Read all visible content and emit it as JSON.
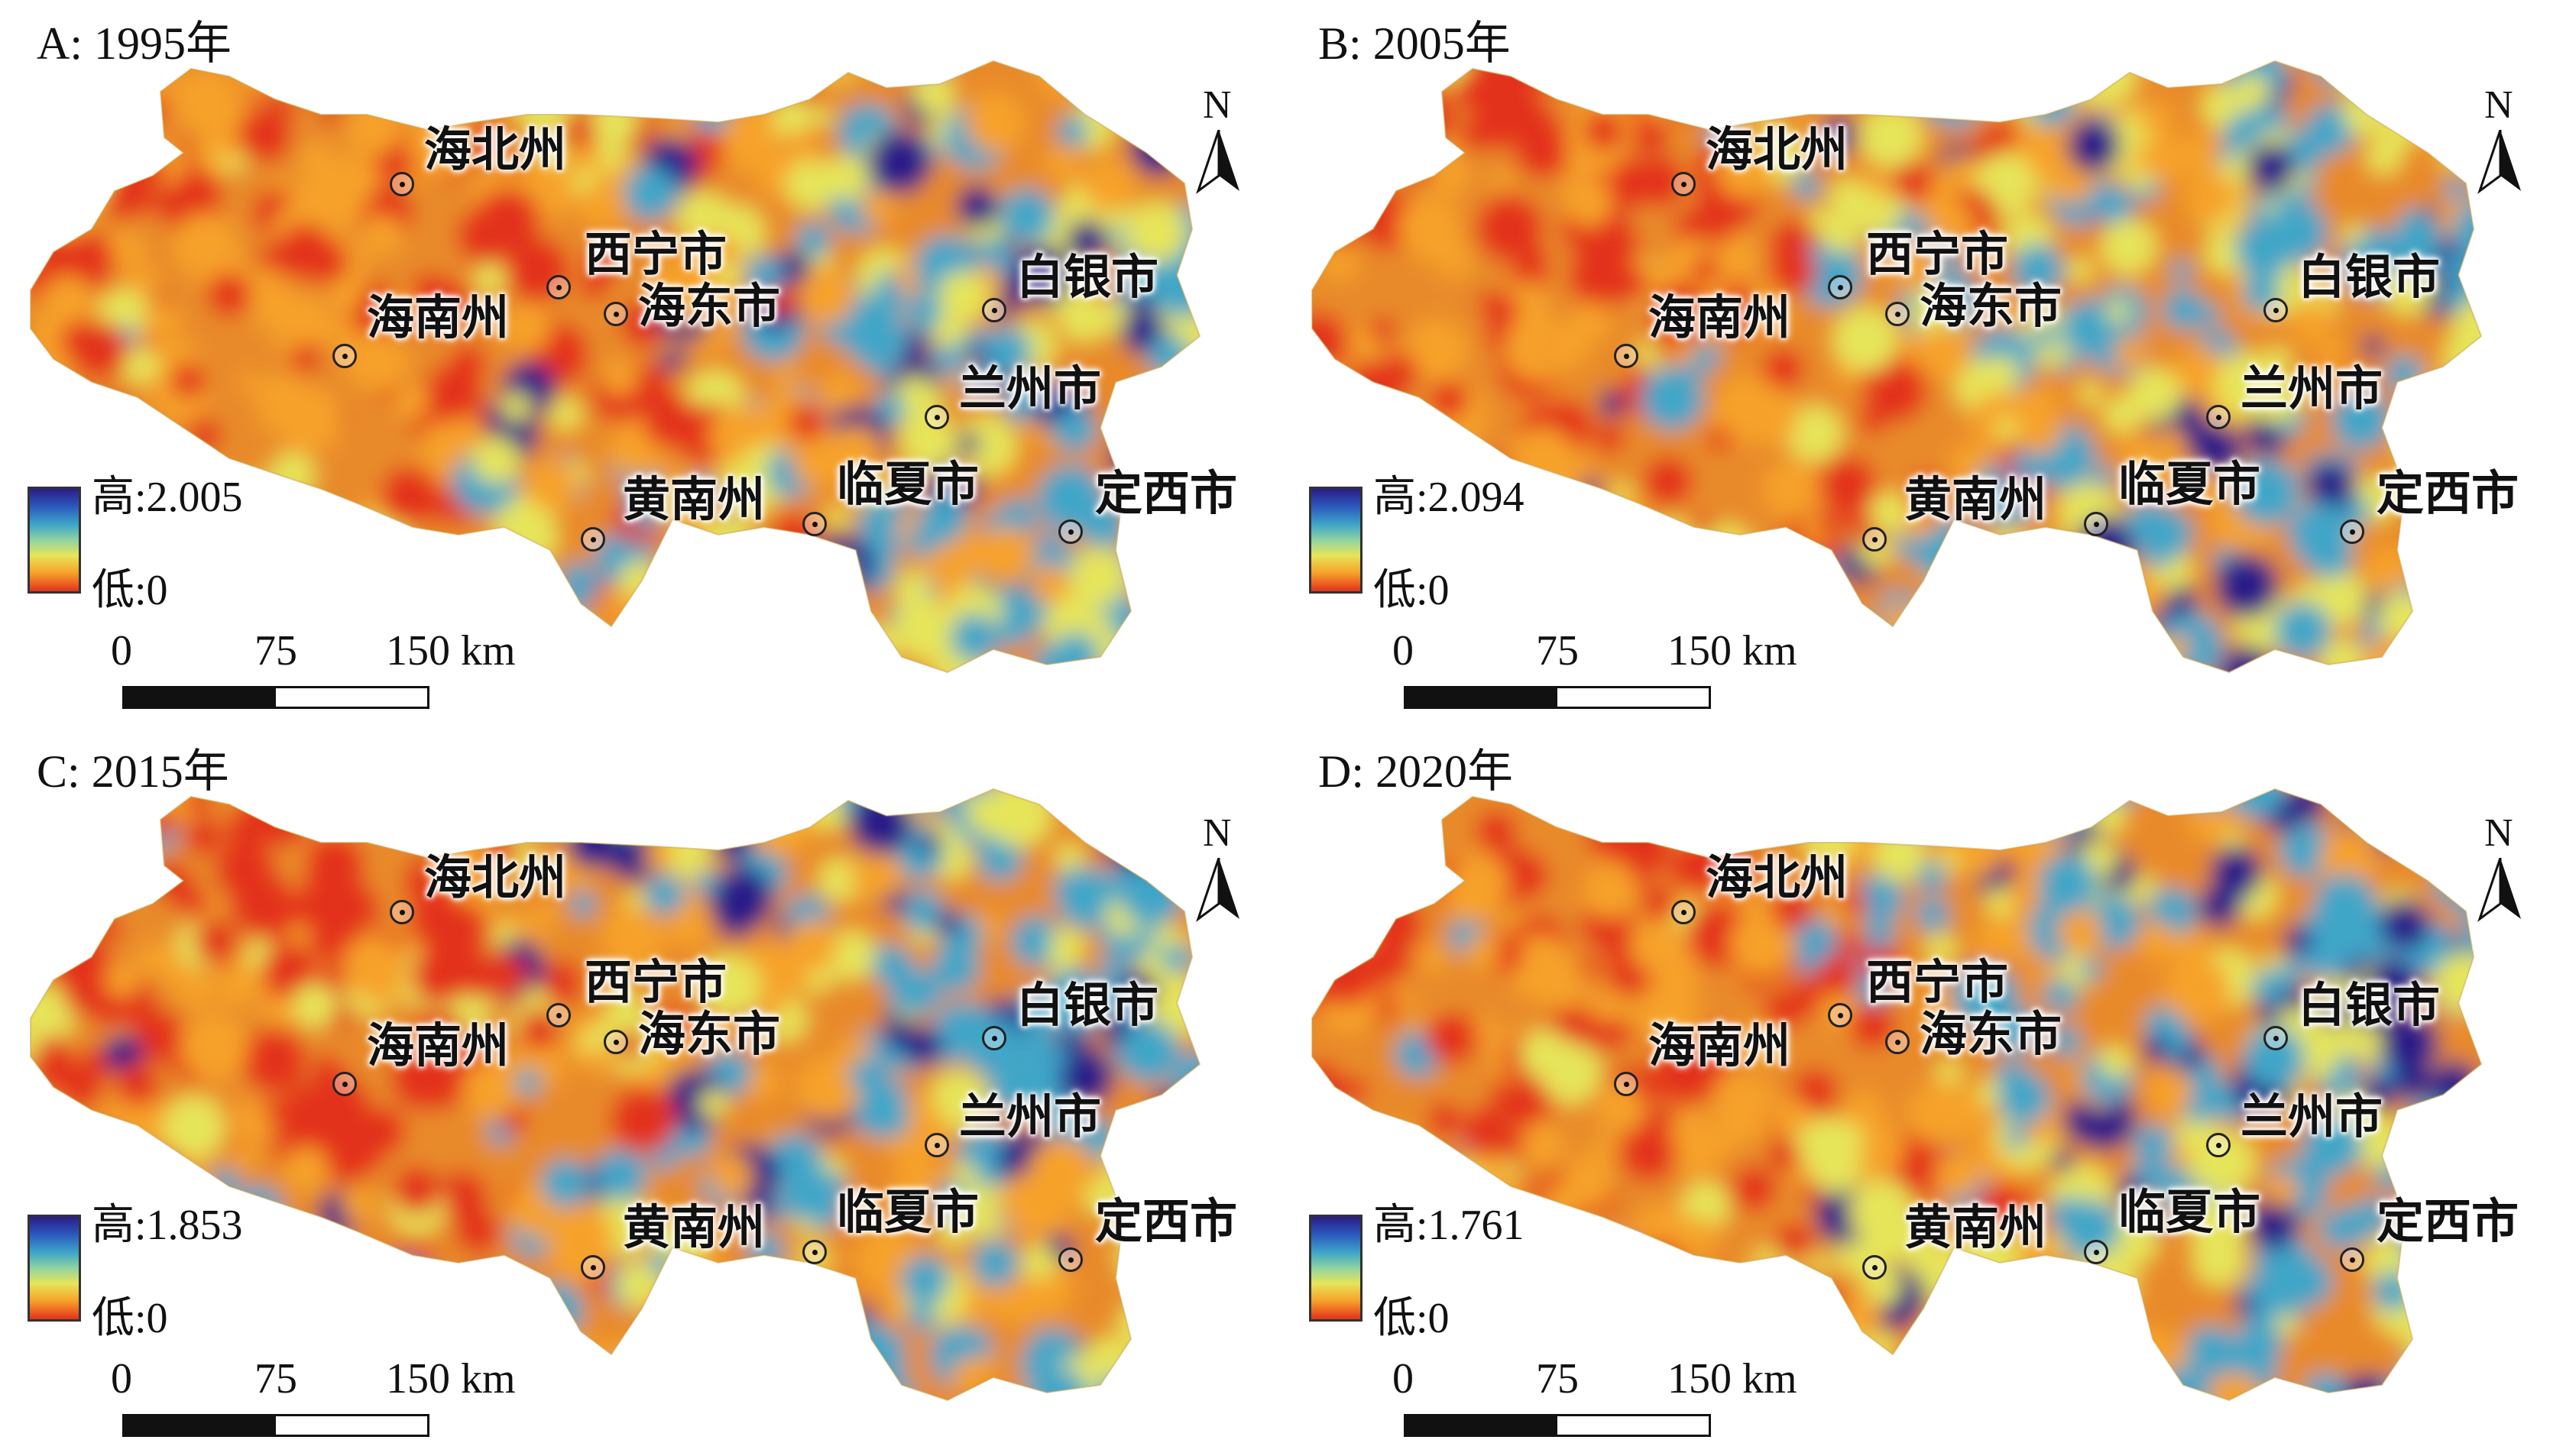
{
  "panels": [
    {
      "title": "A: 1995年",
      "legend_high": "高:2.005",
      "legend_low": "低:0"
    },
    {
      "title": "B: 2005年",
      "legend_high": "高:2.094",
      "legend_low": "低:0"
    },
    {
      "title": "C: 2015年",
      "legend_high": "高:1.853",
      "legend_low": "低:0"
    },
    {
      "title": "D: 2020年",
      "legend_high": "高:1.761",
      "legend_low": "低:0"
    }
  ],
  "cities": {
    "haibei": "海北州",
    "xining": "西宁市",
    "haidong": "海东市",
    "hainan": "海南州",
    "baiyin": "白银市",
    "lanzhou": "兰州市",
    "huangnan": "黄南州",
    "linxia": "临夏市",
    "dingxi": "定西市"
  },
  "scale": {
    "t0": "0",
    "t1": "75",
    "t2": "150 km"
  },
  "north_label": "N",
  "colors": {
    "high": "#2c1c88",
    "mid_high": "#3fa6c8",
    "mid": "#e6e55a",
    "mid_low": "#f6a22a",
    "low": "#e3311c"
  }
}
